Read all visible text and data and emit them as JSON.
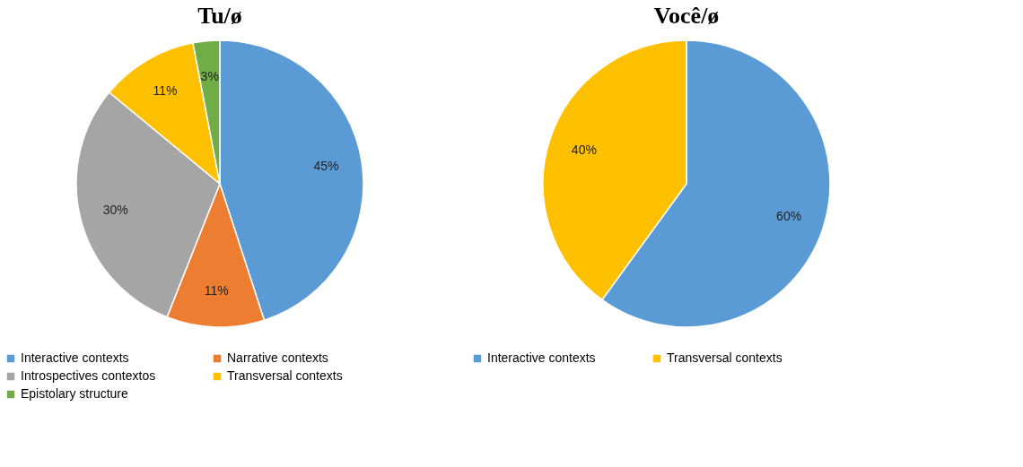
{
  "chart_data": [
    {
      "type": "pie",
      "title": "Tu/ø",
      "categories": [
        "Interactive contexts",
        "Narrative contexts",
        "Introspectives contextos",
        "Transversal contexts",
        "Epistolary structure"
      ],
      "values": [
        45,
        11,
        30,
        11,
        3
      ],
      "colors": [
        "#5b9bd5",
        "#ed7d31",
        "#a5a5a5",
        "#ffc000",
        "#70ad47"
      ],
      "value_labels": [
        "45%",
        "11%",
        "30%",
        "11%",
        "3%"
      ],
      "legend": "bottom"
    },
    {
      "type": "pie",
      "title": "Você/ø",
      "categories": [
        "Interactive contexts",
        "Transversal contexts"
      ],
      "values": [
        60,
        40
      ],
      "colors": [
        "#5b9bd5",
        "#ffc000"
      ],
      "value_labels": [
        "60%",
        "40%"
      ],
      "legend": "bottom"
    }
  ]
}
